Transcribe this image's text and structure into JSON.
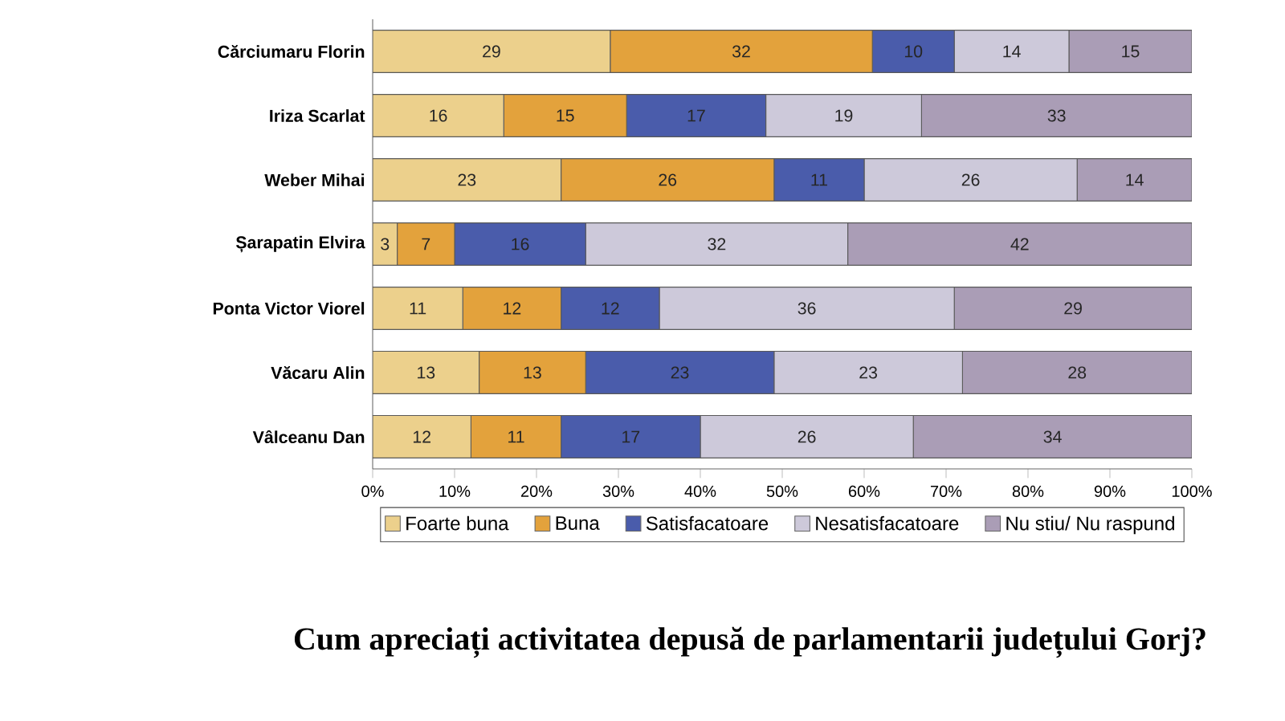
{
  "chart_data": {
    "type": "bar",
    "orientation": "horizontal",
    "stacked": true,
    "title": "Cum apreciați activitatea depusă de parlamentarii județului Gorj?",
    "categories": [
      "Cărciumaru Florin",
      "Iriza Scarlat",
      "Weber Mihai",
      "Șarapatin Elvira",
      "Ponta Victor Viorel",
      "Văcaru Alin",
      "Vâlceanu Dan"
    ],
    "series": [
      {
        "name": "Foarte buna",
        "color": "#ecd08c",
        "values": [
          29,
          16,
          23,
          3,
          11,
          13,
          12
        ]
      },
      {
        "name": "Buna",
        "color": "#e3a23c",
        "values": [
          32,
          15,
          26,
          7,
          12,
          13,
          11
        ]
      },
      {
        "name": "Satisfacatoare",
        "color": "#4a5cab",
        "values": [
          10,
          17,
          11,
          16,
          12,
          23,
          17
        ]
      },
      {
        "name": "Nesatisfacatoare",
        "color": "#cdc9da",
        "values": [
          14,
          19,
          26,
          32,
          36,
          23,
          26
        ]
      },
      {
        "name": "Nu stiu/ Nu raspund",
        "color": "#aa9db6",
        "values": [
          15,
          33,
          14,
          42,
          29,
          28,
          34
        ]
      }
    ],
    "xlim": [
      0,
      100
    ],
    "xticks": [
      {
        "value": 0,
        "label": "0%"
      },
      {
        "value": 10,
        "label": "10%"
      },
      {
        "value": 20,
        "label": "20%"
      },
      {
        "value": 30,
        "label": "30%"
      },
      {
        "value": 40,
        "label": "40%"
      },
      {
        "value": 50,
        "label": "50%"
      },
      {
        "value": 60,
        "label": "60%"
      },
      {
        "value": 70,
        "label": "70%"
      },
      {
        "value": 80,
        "label": "80%"
      },
      {
        "value": 90,
        "label": "90%"
      },
      {
        "value": 100,
        "label": "100%"
      }
    ],
    "data_labels": true,
    "legend": "bottom"
  }
}
